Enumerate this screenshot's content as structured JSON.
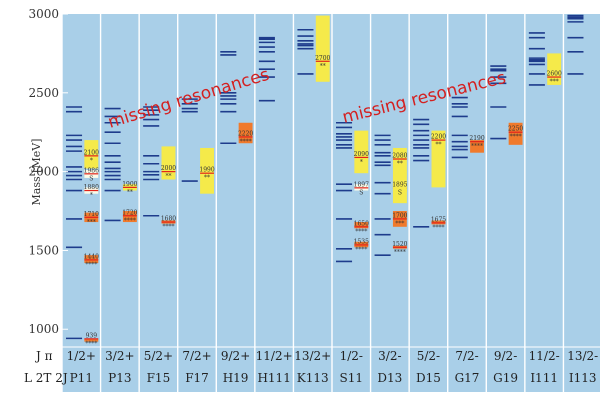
{
  "chart_data": {
    "type": "level-diagram",
    "ylabel": "Mass [MeV]",
    "ylim": [
      900,
      3000
    ],
    "yticks": [
      1000,
      1500,
      2000,
      2500,
      3000
    ],
    "header": {
      "row1": "J π",
      "row2": "L 2T 2J"
    },
    "annotations": [
      "missing resonances",
      "missing resonances"
    ],
    "colors": {
      "panel": "#a9cfe8",
      "model_line": "#1e3c8c",
      "red_line": "#e2231a",
      "orange": "#f07a2c",
      "yellow": "#f5ea4a",
      "white_box": "#fbfbe8"
    },
    "columns": [
      {
        "jp": "1/2+",
        "wave": "P11",
        "predicted": [
          942,
          1520,
          1700,
          1880,
          1950,
          1975,
          2000,
          2030,
          2130,
          2160,
          2200,
          2230,
          2380,
          2410
        ],
        "observed": [
          {
            "label": "939",
            "mass": 939,
            "low": 938,
            "high": 940,
            "rating": "****",
            "color": "orange"
          },
          {
            "label": "1440",
            "mass": 1440,
            "low": 1420,
            "high": 1470,
            "rating": "****",
            "color": "orange"
          },
          {
            "label": "1710",
            "mass": 1710,
            "low": 1680,
            "high": 1740,
            "rating": "***",
            "color": "orange"
          },
          {
            "label": "1880",
            "mass": 1880,
            "low": 1860,
            "high": 1900,
            "rating": "*",
            "color": "white"
          },
          {
            "label": "1986",
            "mass": 1986,
            "low": 1960,
            "high": 2010,
            "rating": "S",
            "color": "white"
          },
          {
            "label": "2100",
            "mass": 2100,
            "low": 2020,
            "high": 2200,
            "rating": "*",
            "color": "yellow"
          }
        ]
      },
      {
        "jp": "3/2+",
        "wave": "P13",
        "predicted": [
          1690,
          1880,
          1950,
          1975,
          2000,
          2020,
          2060,
          2100,
          2180,
          2250,
          2310,
          2350,
          2400
        ],
        "observed": [
          {
            "label": "1720",
            "mass": 1720,
            "low": 1680,
            "high": 1750,
            "rating": "****",
            "color": "orange"
          },
          {
            "label": "1900",
            "mass": 1900,
            "low": 1880,
            "high": 1920,
            "rating": "**",
            "color": "yellow"
          }
        ]
      },
      {
        "jp": "5/2+",
        "wave": "F15",
        "predicted": [
          1720,
          1950,
          1980,
          2000,
          2050,
          2100,
          2290,
          2330,
          2360,
          2390,
          2410
        ],
        "observed": [
          {
            "label": "1680",
            "mass": 1680,
            "low": 1670,
            "high": 1690,
            "rating": "****",
            "color": "orange"
          },
          {
            "label": "2000",
            "mass": 2000,
            "low": 1950,
            "high": 2160,
            "rating": "**",
            "color": "yellow"
          }
        ]
      },
      {
        "jp": "7/2+",
        "wave": "F17",
        "predicted": [
          1940,
          2380,
          2400,
          2430,
          2460
        ],
        "observed": [
          {
            "label": "1990",
            "mass": 1990,
            "low": 1860,
            "high": 2150,
            "rating": "**",
            "color": "yellow"
          }
        ]
      },
      {
        "jp": "9/2+",
        "wave": "H19",
        "predicted": [
          2180,
          2380,
          2430,
          2460,
          2480,
          2500,
          2740,
          2760
        ],
        "observed": [
          {
            "label": "2220",
            "mass": 2220,
            "low": 2180,
            "high": 2310,
            "rating": "****",
            "color": "orange"
          }
        ]
      },
      {
        "jp": "11/2+",
        "wave": "H111",
        "predicted": [
          2450,
          2600,
          2650,
          2700,
          2760,
          2790,
          2820,
          2840,
          2850
        ],
        "observed": []
      },
      {
        "jp": "13/2+",
        "wave": "K113",
        "predicted": [
          2620,
          2780,
          2800,
          2810,
          2830,
          2860,
          2900
        ],
        "observed": [
          {
            "label": "2700",
            "mass": 2700,
            "low": 2570,
            "high": 2990,
            "rating": "**",
            "color": "yellow"
          }
        ]
      },
      {
        "jp": "1/2-",
        "wave": "S11",
        "predicted": [
          1430,
          1510,
          1700,
          1880,
          1920,
          2150,
          2170,
          2200,
          2220,
          2240,
          2280,
          2310
        ],
        "observed": [
          {
            "label": "1535",
            "mass": 1535,
            "low": 1520,
            "high": 1555,
            "rating": "****",
            "color": "orange"
          },
          {
            "label": "1650",
            "mass": 1650,
            "low": 1640,
            "high": 1680,
            "rating": "****",
            "color": "orange"
          },
          {
            "label": "1897",
            "mass": 1897,
            "low": 1880,
            "high": 1920,
            "rating": "S",
            "color": "white"
          },
          {
            "label": "2090",
            "mass": 2090,
            "low": 1990,
            "high": 2260,
            "rating": "*",
            "color": "yellow"
          }
        ]
      },
      {
        "jp": "3/2-",
        "wave": "D13",
        "predicted": [
          1470,
          1600,
          1700,
          1860,
          1930,
          2040,
          2060,
          2100,
          2120,
          2170,
          2200,
          2230
        ],
        "observed": [
          {
            "label": "1520",
            "mass": 1520,
            "low": 1515,
            "high": 1530,
            "rating": "****",
            "color": "orange"
          },
          {
            "label": "1700",
            "mass": 1700,
            "low": 1650,
            "high": 1750,
            "rating": "***",
            "color": "orange"
          },
          {
            "label": "1895",
            "mass": 1895,
            "low": 1870,
            "high": 1920,
            "rating": "S",
            "color": "yellow"
          },
          {
            "label": "2080",
            "mass": 2080,
            "low": 1800,
            "high": 2150,
            "rating": "**",
            "color": "yellow"
          }
        ]
      },
      {
        "jp": "5/2-",
        "wave": "D15",
        "predicted": [
          1650,
          2070,
          2100,
          2150,
          2170,
          2200,
          2230,
          2260,
          2300,
          2330
        ],
        "observed": [
          {
            "label": "1675",
            "mass": 1675,
            "low": 1665,
            "high": 1690,
            "rating": "****",
            "color": "orange"
          },
          {
            "label": "2200",
            "mass": 2200,
            "low": 1900,
            "high": 2260,
            "rating": "**",
            "color": "yellow"
          }
        ]
      },
      {
        "jp": "7/2-",
        "wave": "G17",
        "predicted": [
          2090,
          2140,
          2160,
          2190,
          2230,
          2350,
          2410,
          2430,
          2470
        ],
        "observed": [
          {
            "label": "2190",
            "mass": 2190,
            "low": 2120,
            "high": 2200,
            "rating": "****",
            "color": "orange"
          }
        ]
      },
      {
        "jp": "9/2-",
        "wave": "G19",
        "predicted": [
          2210,
          2410,
          2560,
          2600,
          2640,
          2650,
          2670
        ],
        "observed": [
          {
            "label": "2250",
            "mass": 2250,
            "low": 2170,
            "high": 2310,
            "rating": "****",
            "color": "orange"
          }
        ]
      },
      {
        "jp": "11/2-",
        "wave": "I111",
        "predicted": [
          2550,
          2620,
          2680,
          2700,
          2710,
          2720,
          2780,
          2850,
          2880
        ],
        "observed": [
          {
            "label": "2600",
            "mass": 2600,
            "low": 2550,
            "high": 2750,
            "rating": "***",
            "color": "yellow"
          }
        ]
      },
      {
        "jp": "13/2-",
        "wave": "I113",
        "predicted": [
          2620,
          2760,
          2850,
          2950,
          2970,
          2980,
          2990
        ],
        "observed": []
      }
    ]
  }
}
